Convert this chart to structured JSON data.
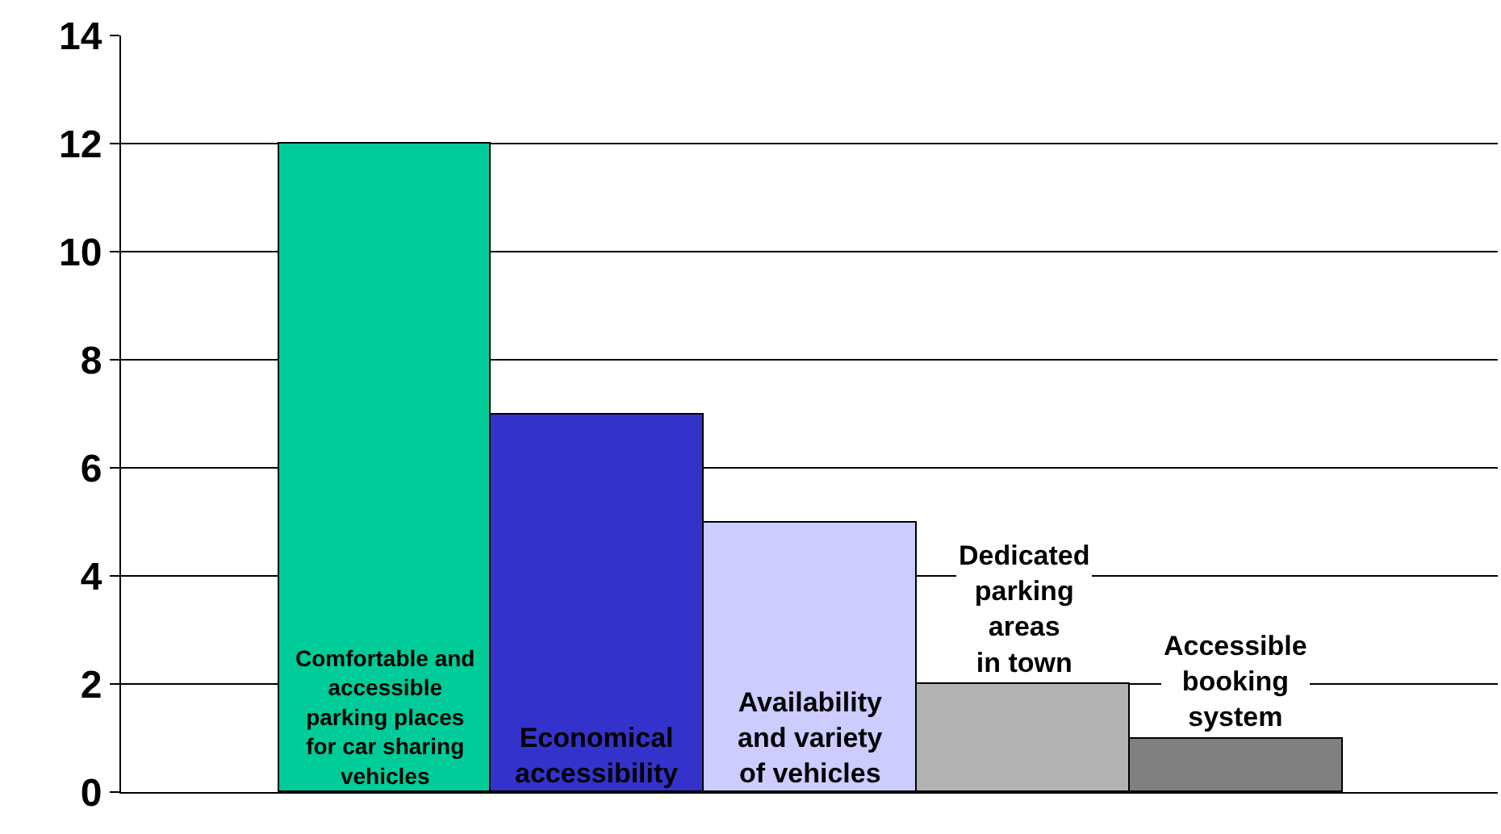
{
  "chart_data": {
    "type": "bar",
    "categories": [
      "Comfortable and\naccessible\nparking places\nfor car sharing\nvehicles",
      "Economical\naccessibility",
      "Availability\nand variety\nof vehicles",
      "Dedicated\nparking\nareas\nin town",
      "Accessible\nbooking\nsystem"
    ],
    "values": [
      12,
      7,
      5,
      2,
      1
    ],
    "colors": [
      "#00cc99",
      "#3333cc",
      "#ccccff",
      "#b2b2b2",
      "#808080"
    ],
    "ylim": [
      0,
      14
    ],
    "yticks": [
      0,
      2,
      4,
      6,
      8,
      10,
      12,
      14
    ],
    "grid": "y",
    "tick_labels": "y"
  }
}
